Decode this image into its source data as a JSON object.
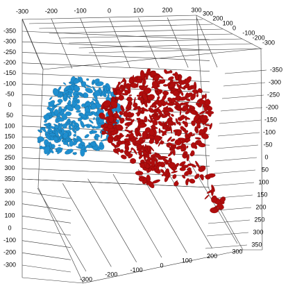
{
  "chart_data": {
    "type": "isosurface3d",
    "colors": [
      "#1f8fd0",
      "#b00d0d"
    ],
    "axes": [
      {
        "ticks": [
          -300,
          -200,
          -100,
          0,
          100,
          200,
          300
        ]
      },
      {
        "ticks": [
          300,
          200,
          100,
          0,
          -100,
          -200,
          -300
        ]
      },
      {
        "ticks": [
          -350,
          -300,
          -250,
          -200,
          -150,
          -100,
          -50,
          0,
          50,
          100,
          150,
          200,
          250,
          300,
          350
        ]
      },
      {
        "ticks": [
          300,
          200,
          100,
          0,
          -100,
          -200,
          -300
        ]
      },
      {
        "ticks": [
          -300,
          -200,
          -100,
          0,
          100,
          200,
          300
        ]
      },
      {
        "ticks": [
          -350,
          -300,
          -250,
          -200,
          -150,
          -100,
          -50,
          0,
          50,
          100,
          150,
          200,
          250,
          300,
          350
        ]
      }
    ]
  }
}
